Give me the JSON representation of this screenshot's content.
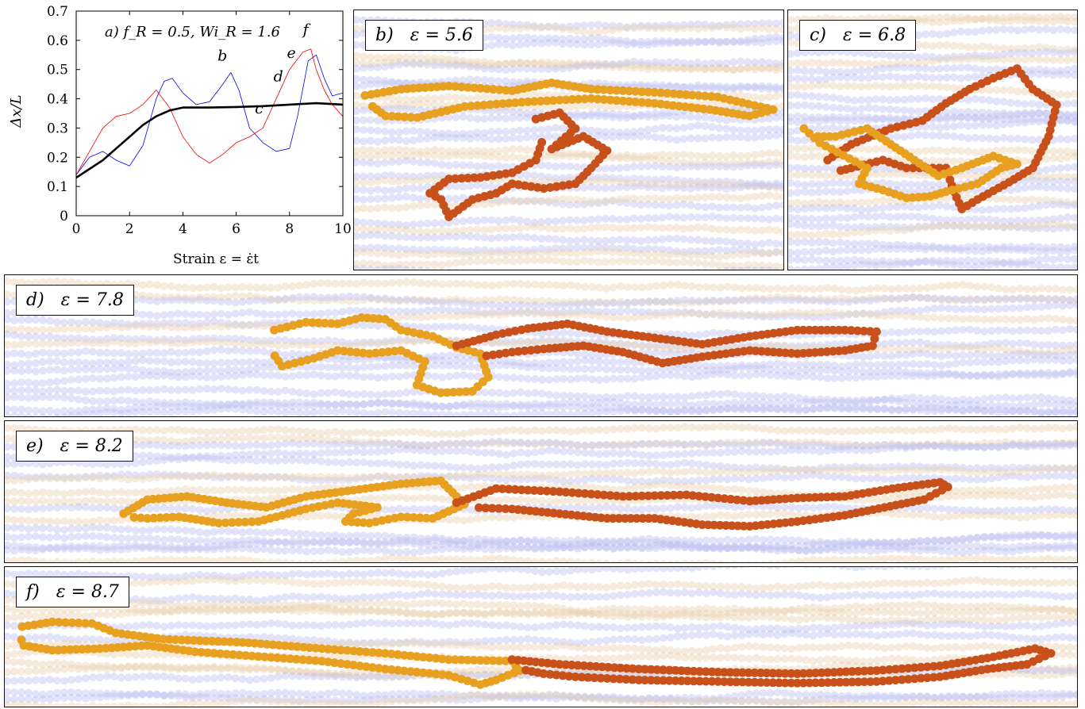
{
  "chart_data": {
    "type": "line",
    "title": "a) f_R = 0.5, Wi_R = 1.6",
    "xlabel": "Strain ε = ε̇t",
    "ylabel": "Δx/L",
    "xlim": [
      0,
      10
    ],
    "ylim": [
      0,
      0.7
    ],
    "xticks": [
      "0",
      "2",
      "4",
      "6",
      "8",
      "10"
    ],
    "yticks": [
      "0",
      "0.1",
      "0.2",
      "0.3",
      "0.4",
      "0.5",
      "0.6",
      "0.7"
    ],
    "grid": false,
    "series": [
      {
        "color": "#0000ee",
        "width": 0.8,
        "x": [
          0,
          0.5,
          1.0,
          1.5,
          2.0,
          2.5,
          3.0,
          3.3,
          3.6,
          4.0,
          4.5,
          5.0,
          5.5,
          5.8,
          6.1,
          6.5,
          7.0,
          7.5,
          8.0,
          8.3,
          8.7,
          9.0,
          9.3,
          9.6,
          10
        ],
        "y": [
          0.14,
          0.2,
          0.22,
          0.19,
          0.17,
          0.24,
          0.4,
          0.46,
          0.47,
          0.42,
          0.38,
          0.39,
          0.45,
          0.49,
          0.43,
          0.3,
          0.25,
          0.22,
          0.23,
          0.34,
          0.53,
          0.55,
          0.47,
          0.41,
          0.42
        ]
      },
      {
        "color": "#ee0000",
        "width": 0.8,
        "x": [
          0,
          0.5,
          1.0,
          1.5,
          2.0,
          2.5,
          3.0,
          3.5,
          4.0,
          4.5,
          5.0,
          5.5,
          6.0,
          6.5,
          7.0,
          7.5,
          8.0,
          8.5,
          8.8,
          9.0,
          9.3,
          9.6,
          10
        ],
        "y": [
          0.14,
          0.22,
          0.3,
          0.34,
          0.35,
          0.38,
          0.43,
          0.37,
          0.27,
          0.21,
          0.18,
          0.21,
          0.25,
          0.27,
          0.3,
          0.4,
          0.5,
          0.56,
          0.57,
          0.5,
          0.43,
          0.38,
          0.34
        ]
      },
      {
        "color": "#000000",
        "width": 2.6,
        "x": [
          0,
          0.5,
          1,
          1.5,
          2,
          2.5,
          3,
          3.5,
          4,
          4.5,
          5,
          6,
          7,
          8,
          9,
          10
        ],
        "y": [
          0.13,
          0.16,
          0.19,
          0.23,
          0.27,
          0.31,
          0.34,
          0.36,
          0.37,
          0.37,
          0.37,
          0.372,
          0.375,
          0.38,
          0.385,
          0.38
        ]
      }
    ],
    "annotations": [
      {
        "text": "b",
        "x": 5.3,
        "y": 0.53
      },
      {
        "text": "c",
        "x": 6.7,
        "y": 0.35
      },
      {
        "text": "d",
        "x": 7.4,
        "y": 0.46
      },
      {
        "text": "e",
        "x": 7.9,
        "y": 0.54
      },
      {
        "text": "f",
        "x": 8.5,
        "y": 0.62
      }
    ]
  },
  "panels": [
    {
      "key": "b",
      "letter": "b)",
      "eps": "ε = 5.6"
    },
    {
      "key": "c",
      "letter": "c)",
      "eps": "ε = 6.8"
    },
    {
      "key": "d",
      "letter": "d)",
      "eps": "ε = 7.8"
    },
    {
      "key": "e",
      "letter": "e)",
      "eps": "ε = 8.2"
    },
    {
      "key": "f",
      "letter": "f)",
      "eps": "ε = 8.7"
    }
  ],
  "colors": {
    "chain_orange": "#e8a020",
    "chain_red": "#c8501a",
    "bg_blue": "#b8bcf0",
    "bg_tan": "#e8cca8"
  }
}
